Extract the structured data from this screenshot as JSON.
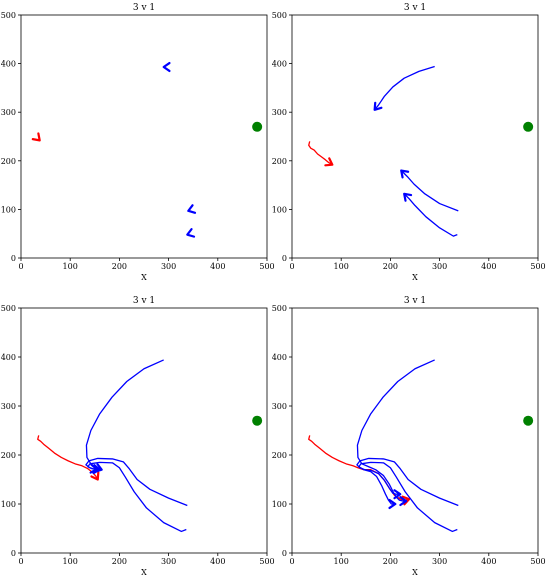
{
  "chart_data": [
    {
      "type": "line",
      "title": "3 v 1",
      "xlabel": "X",
      "ylabel": "",
      "xlim": [
        0,
        500
      ],
      "ylim": [
        0,
        500
      ],
      "xticks": [
        "0",
        "100",
        "200",
        "300",
        "400",
        "500"
      ],
      "yticks": [
        "0",
        "100",
        "200",
        "300",
        "400",
        "500"
      ],
      "grid": false,
      "target": {
        "x": 480,
        "y": 270,
        "color": "#008000"
      },
      "series": [
        {
          "color": "#ff0000",
          "points": [
            [
              36,
              244
            ]
          ],
          "arrow_to": [
            38,
            242
          ]
        },
        {
          "color": "#0000ff",
          "points": [
            [
              292,
              393
            ]
          ],
          "arrow_to": [
            290,
            393
          ]
        },
        {
          "color": "#0000ff",
          "points": [
            [
              343,
              98
            ]
          ],
          "arrow_to": [
            340,
            97
          ]
        },
        {
          "color": "#0000ff",
          "points": [
            [
              341,
              49
            ]
          ],
          "arrow_to": [
            338,
            48
          ]
        }
      ]
    },
    {
      "type": "line",
      "title": "3 v 1",
      "xlabel": "X",
      "ylabel": "",
      "xlim": [
        0,
        500
      ],
      "ylim": [
        0,
        500
      ],
      "xticks": [
        "0",
        "100",
        "200",
        "300",
        "400",
        "500"
      ],
      "yticks": [
        "0",
        "100",
        "200",
        "300",
        "400",
        "500"
      ],
      "grid": false,
      "target": {
        "x": 480,
        "y": 270,
        "color": "#008000"
      },
      "series": [
        {
          "color": "#ff0000",
          "points": [
            [
              36,
              240
            ],
            [
              34,
              232
            ],
            [
              38,
              226
            ],
            [
              45,
              222
            ],
            [
              52,
              214
            ],
            [
              60,
              208
            ],
            [
              68,
              202
            ],
            [
              75,
              196
            ]
          ],
          "arrow_to": [
            82,
            192
          ]
        },
        {
          "color": "#0000ff",
          "points": [
            [
              290,
              394
            ],
            [
              258,
              384
            ],
            [
              228,
              370
            ],
            [
              205,
              352
            ],
            [
              188,
              333
            ],
            [
              176,
              315
            ]
          ],
          "arrow_to": [
            168,
            305
          ]
        },
        {
          "color": "#0000ff",
          "points": [
            [
              338,
              97
            ],
            [
              300,
              112
            ],
            [
              270,
              132
            ],
            [
              248,
              152
            ],
            [
              234,
              168
            ]
          ],
          "arrow_to": [
            222,
            180
          ]
        },
        {
          "color": "#0000ff",
          "points": [
            [
              336,
              48
            ],
            [
              328,
              45
            ],
            [
              300,
              62
            ],
            [
              272,
              85
            ],
            [
              250,
              108
            ],
            [
              238,
              122
            ]
          ],
          "arrow_to": [
            228,
            132
          ]
        }
      ]
    },
    {
      "type": "line",
      "title": "3 v 1",
      "xlabel": "X",
      "ylabel": "",
      "xlim": [
        0,
        500
      ],
      "ylim": [
        0,
        500
      ],
      "xticks": [
        "0",
        "100",
        "200",
        "300",
        "400",
        "500"
      ],
      "yticks": [
        "0",
        "100",
        "200",
        "300",
        "400",
        "500"
      ],
      "grid": false,
      "target": {
        "x": 480,
        "y": 270,
        "color": "#008000"
      },
      "series": [
        {
          "color": "#ff0000",
          "points": [
            [
              36,
              240
            ],
            [
              34,
              232
            ],
            [
              40,
              228
            ],
            [
              46,
              222
            ],
            [
              56,
              214
            ],
            [
              68,
              204
            ],
            [
              82,
              195
            ],
            [
              96,
              188
            ],
            [
              110,
              182
            ],
            [
              124,
              178
            ],
            [
              136,
              172
            ],
            [
              146,
              164
            ],
            [
              152,
              157
            ]
          ],
          "arrow_to": [
            156,
            150
          ]
        },
        {
          "color": "#0000ff",
          "points": [
            [
              290,
              394
            ],
            [
              250,
              376
            ],
            [
              215,
              350
            ],
            [
              185,
              318
            ],
            [
              160,
              284
            ],
            [
              142,
              250
            ],
            [
              133,
              220
            ],
            [
              134,
              195
            ],
            [
              142,
              182
            ],
            [
              150,
              176
            ],
            [
              158,
              172
            ]
          ],
          "arrow_to": [
            164,
            170
          ]
        },
        {
          "color": "#0000ff",
          "points": [
            [
              338,
              97
            ],
            [
              300,
              112
            ],
            [
              262,
              130
            ],
            [
              236,
              150
            ],
            [
              220,
              172
            ],
            [
              208,
              186
            ],
            [
              186,
              192
            ],
            [
              156,
              193
            ],
            [
              138,
              188
            ],
            [
              132,
              180
            ],
            [
              140,
              174
            ],
            [
              150,
              171
            ]
          ],
          "arrow_to": [
            160,
            170
          ]
        },
        {
          "color": "#0000ff",
          "points": [
            [
              336,
              48
            ],
            [
              326,
              44
            ],
            [
              290,
              62
            ],
            [
              255,
              92
            ],
            [
              230,
              125
            ],
            [
              212,
              155
            ],
            [
              200,
              174
            ],
            [
              186,
              184
            ],
            [
              160,
              185
            ],
            [
              140,
              182
            ],
            [
              136,
              176
            ],
            [
              144,
              172
            ]
          ],
          "arrow_to": [
            154,
            171
          ]
        }
      ]
    },
    {
      "type": "line",
      "title": "3 v 1",
      "xlabel": "X",
      "ylabel": "",
      "xlim": [
        0,
        500
      ],
      "ylim": [
        0,
        500
      ],
      "xticks": [
        "0",
        "100",
        "200",
        "300",
        "400",
        "500"
      ],
      "yticks": [
        "0",
        "100",
        "200",
        "300",
        "400",
        "500"
      ],
      "grid": false,
      "target": {
        "x": 480,
        "y": 270,
        "color": "#008000"
      },
      "series": [
        {
          "color": "#ff0000",
          "points": [
            [
              36,
              240
            ],
            [
              34,
              232
            ],
            [
              40,
              228
            ],
            [
              46,
              222
            ],
            [
              56,
              214
            ],
            [
              68,
              204
            ],
            [
              82,
              195
            ],
            [
              96,
              188
            ],
            [
              110,
              182
            ],
            [
              124,
              178
            ],
            [
              134,
              174
            ],
            [
              146,
              170
            ],
            [
              160,
              170
            ],
            [
              176,
              162
            ],
            [
              188,
              148
            ],
            [
              198,
              132
            ],
            [
              208,
              118
            ],
            [
              220,
              110
            ],
            [
              230,
              108
            ]
          ],
          "arrow_to": [
            238,
            110
          ]
        },
        {
          "color": "#0000ff",
          "points": [
            [
              290,
              394
            ],
            [
              250,
              376
            ],
            [
              215,
              350
            ],
            [
              185,
              318
            ],
            [
              160,
              284
            ],
            [
              142,
              250
            ],
            [
              133,
              220
            ],
            [
              134,
              195
            ],
            [
              142,
              182
            ],
            [
              156,
              176
            ],
            [
              170,
              170
            ],
            [
              186,
              158
            ],
            [
              198,
              140
            ],
            [
              206,
              124
            ],
            [
              212,
              114
            ],
            [
              218,
              108
            ],
            [
              225,
              106
            ]
          ],
          "arrow_to": [
            232,
            106
          ]
        },
        {
          "color": "#0000ff",
          "points": [
            [
              338,
              97
            ],
            [
              300,
              112
            ],
            [
              262,
              130
            ],
            [
              236,
              150
            ],
            [
              220,
              172
            ],
            [
              208,
              186
            ],
            [
              186,
              192
            ],
            [
              156,
              193
            ],
            [
              138,
              188
            ],
            [
              132,
              180
            ],
            [
              138,
              174
            ],
            [
              148,
              170
            ],
            [
              162,
              168
            ],
            [
              176,
              162
            ],
            [
              188,
              148
            ],
            [
              198,
              132
            ],
            [
              205,
              122
            ],
            [
              212,
              120
            ]
          ],
          "arrow_to": [
            220,
            120
          ]
        },
        {
          "color": "#0000ff",
          "points": [
            [
              336,
              48
            ],
            [
              326,
              44
            ],
            [
              290,
              62
            ],
            [
              255,
              92
            ],
            [
              230,
              125
            ],
            [
              212,
              155
            ],
            [
              200,
              174
            ],
            [
              186,
              184
            ],
            [
              160,
              185
            ],
            [
              140,
              182
            ],
            [
              136,
              176
            ],
            [
              146,
              170
            ],
            [
              160,
              166
            ],
            [
              172,
              156
            ],
            [
              182,
              138
            ],
            [
              190,
              120
            ],
            [
              196,
              108
            ],
            [
              202,
              100
            ]
          ],
          "arrow_to": [
            210,
            100
          ]
        }
      ]
    }
  ]
}
